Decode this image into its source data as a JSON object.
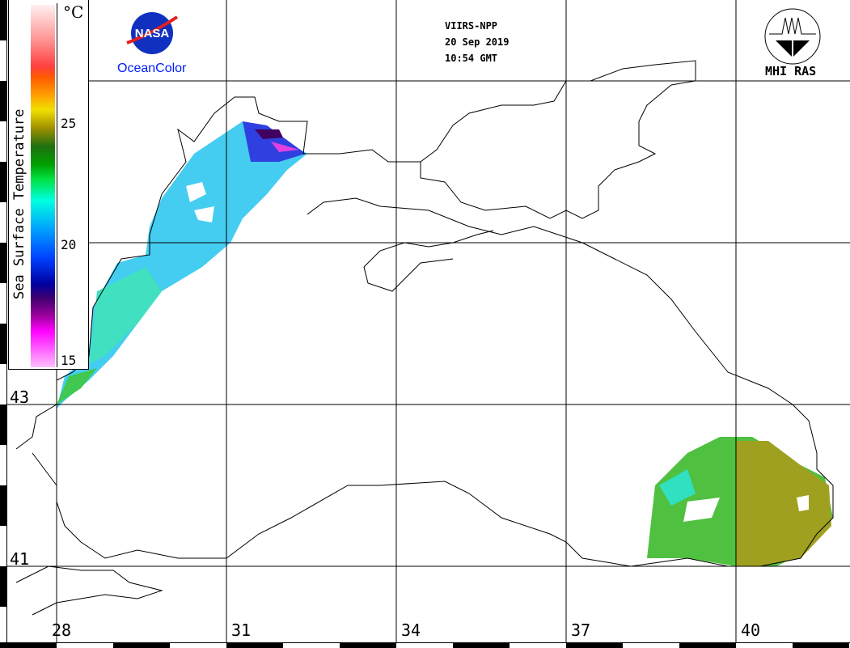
{
  "header": {
    "sensor": "VIIRS-NPP",
    "date": "20 Sep 2019",
    "time": "10:54 GMT"
  },
  "logos": {
    "left_brand": "NASA",
    "left_caption": "OceanColor",
    "right_caption": "MHI RAS"
  },
  "colorbar": {
    "title": "Sea Surface Temperature",
    "unit": "°C",
    "range": [
      15,
      30
    ],
    "ticks": [
      "25",
      "20",
      "15"
    ]
  },
  "grid": {
    "longitudes": [
      "28",
      "31",
      "34",
      "37",
      "40"
    ],
    "latitudes": [
      "43",
      "41"
    ]
  },
  "colors": {
    "coastline": "#000000",
    "grid": "#000000"
  }
}
